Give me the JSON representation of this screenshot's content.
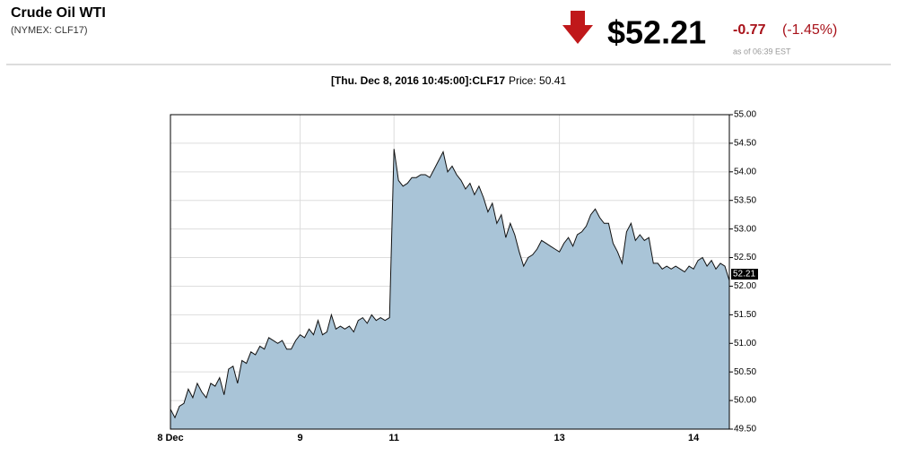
{
  "header": {
    "title": "Crude Oil WTI",
    "symbol": "(NYMEX: CLF17)",
    "price": "$52.21",
    "change": "-0.77",
    "change_pct": "(-1.45%)",
    "as_of": "as of 06:39 EST"
  },
  "chart_data": {
    "type": "area",
    "info_bold": "[Thu. Dec 8, 2016 10:45:00]:CLF17",
    "info_price": "Price: 50.41",
    "categories": [
      "8 Dec",
      null,
      null,
      null,
      null,
      null,
      null,
      null,
      null,
      null,
      null,
      null,
      null,
      null,
      null,
      null,
      null,
      null,
      null,
      null,
      null,
      null,
      null,
      null,
      null,
      null,
      null,
      null,
      null,
      "9",
      null,
      null,
      null,
      null,
      null,
      null,
      null,
      null,
      null,
      null,
      null,
      null,
      null,
      null,
      null,
      null,
      null,
      null,
      null,
      null,
      "11",
      null,
      null,
      null,
      null,
      null,
      null,
      null,
      null,
      null,
      null,
      null,
      null,
      null,
      null,
      null,
      null,
      null,
      null,
      null,
      null,
      null,
      null,
      null,
      null,
      null,
      null,
      null,
      null,
      null,
      null,
      null,
      null,
      null,
      null,
      null,
      null,
      "13",
      null,
      null,
      null,
      null,
      null,
      null,
      null,
      null,
      null,
      null,
      null,
      null,
      null,
      null,
      null,
      null,
      null,
      null,
      null,
      null,
      null,
      null,
      null,
      null,
      null,
      null,
      null,
      null,
      null,
      "14",
      null,
      null,
      null,
      null,
      null,
      null,
      null,
      null
    ],
    "series": [
      {
        "name": "CLF17",
        "color": "#a9c4d7",
        "values": [
          49.85,
          49.7,
          49.9,
          49.95,
          50.2,
          50.05,
          50.3,
          50.15,
          50.05,
          50.3,
          50.25,
          50.4,
          50.1,
          50.55,
          50.6,
          50.3,
          50.7,
          50.65,
          50.85,
          50.8,
          50.95,
          50.9,
          51.1,
          51.05,
          51.0,
          51.05,
          50.9,
          50.9,
          51.05,
          51.15,
          51.1,
          51.25,
          51.15,
          51.4,
          51.15,
          51.2,
          51.5,
          51.25,
          51.3,
          51.25,
          51.3,
          51.2,
          51.4,
          51.45,
          51.35,
          51.5,
          51.4,
          51.45,
          51.4,
          51.45,
          54.4,
          53.85,
          53.75,
          53.8,
          53.9,
          53.9,
          53.95,
          53.95,
          53.9,
          54.05,
          54.2,
          54.35,
          54.0,
          54.1,
          53.95,
          53.85,
          53.7,
          53.8,
          53.6,
          53.75,
          53.55,
          53.3,
          53.45,
          53.1,
          53.25,
          52.85,
          53.1,
          52.9,
          52.6,
          52.35,
          52.5,
          52.55,
          52.65,
          52.8,
          52.75,
          52.7,
          52.65,
          52.6,
          52.75,
          52.85,
          52.7,
          52.9,
          52.95,
          53.05,
          53.25,
          53.35,
          53.2,
          53.1,
          53.1,
          52.75,
          52.6,
          52.4,
          52.95,
          53.1,
          52.8,
          52.9,
          52.8,
          52.85,
          52.4,
          52.4,
          52.3,
          52.35,
          52.3,
          52.35,
          52.3,
          52.25,
          52.35,
          52.3,
          52.45,
          52.5,
          52.35,
          52.45,
          52.3,
          52.4,
          52.35,
          52.1
        ]
      }
    ],
    "current_price": 52.21,
    "ylim": [
      49.5,
      55
    ],
    "yticks": [
      {
        "value": 49.5,
        "label": "49.50"
      },
      {
        "value": 50,
        "label": "50.00"
      },
      {
        "value": 50.5,
        "label": "50.50"
      },
      {
        "value": 51,
        "label": "51.00"
      },
      {
        "value": 51.5,
        "label": "51.50"
      },
      {
        "value": 52,
        "label": "52.00"
      },
      {
        "value": 52.5,
        "label": "52.50"
      },
      {
        "value": 53,
        "label": "53.00"
      },
      {
        "value": 53.5,
        "label": "53.50"
      },
      {
        "value": 54,
        "label": "54.00"
      },
      {
        "value": 54.5,
        "label": "54.50"
      },
      {
        "value": 55,
        "label": "55.00"
      }
    ],
    "grid": true
  }
}
